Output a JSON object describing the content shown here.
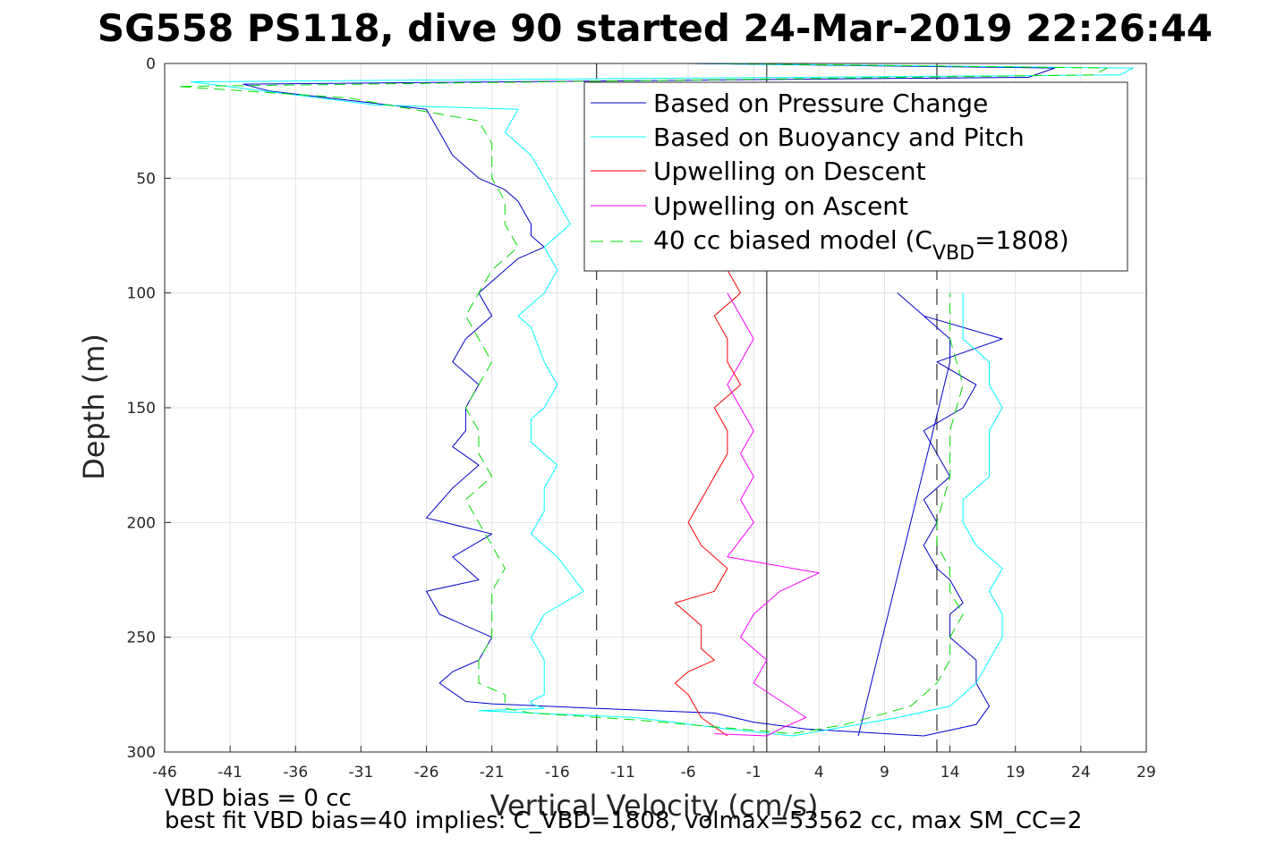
{
  "chart_data": {
    "type": "line",
    "title": "SG558 PS118, dive 90 started 24-Mar-2019 22:26:44",
    "xlabel": "Vertical Velocity (cm/s)",
    "ylabel": "Depth (m)",
    "xlim": [
      -46,
      29
    ],
    "ylim": [
      300,
      0
    ],
    "y_reversed": true,
    "grid": true,
    "x_ticks": [
      "-46",
      "-41",
      "-36",
      "-31",
      "-26",
      "-21",
      "-16",
      "-11",
      "-6",
      "-1",
      "4",
      "9",
      "14",
      "19",
      "24",
      "29"
    ],
    "y_ticks": [
      "0",
      "50",
      "100",
      "150",
      "200",
      "250",
      "300"
    ],
    "legend_position": "top-right",
    "reference_lines": [
      {
        "x": -13,
        "style": "dashed",
        "color": "#333333"
      },
      {
        "x": 0,
        "style": "solid",
        "color": "#333333"
      },
      {
        "x": 13,
        "style": "dashed",
        "color": "#333333"
      }
    ],
    "series": [
      {
        "name": "Based on Pressure Change",
        "color": "#0000cc",
        "dash": "none",
        "x": [
          -6,
          22,
          20,
          -40,
          -38,
          -26,
          -25,
          -24,
          -23,
          -22,
          -20,
          -19,
          -18,
          -18,
          -17,
          -19,
          -20,
          -21,
          -22,
          -21,
          -23,
          -24,
          -22,
          -23,
          -23,
          -24,
          -22,
          -24,
          -26,
          -21,
          -24,
          -22,
          -26,
          -25,
          -21,
          -22,
          -24,
          -25,
          -23,
          -21,
          -13,
          -4,
          -1,
          3,
          12,
          16,
          17,
          16,
          16,
          14,
          14,
          15,
          14,
          13,
          12,
          13,
          12,
          14,
          13,
          12,
          15,
          16,
          13,
          18,
          12,
          10,
          10,
          12,
          14,
          14,
          7
        ],
        "y": [
          0,
          2,
          6,
          9,
          12,
          20,
          30,
          40,
          45,
          50,
          55,
          60,
          70,
          75,
          80,
          85,
          90,
          95,
          100,
          110,
          120,
          130,
          140,
          150,
          160,
          167,
          175,
          185,
          198,
          205,
          215,
          225,
          230,
          240,
          250,
          260,
          265,
          270,
          278,
          279,
          281,
          283,
          287,
          290,
          293,
          288,
          280,
          270,
          260,
          250,
          240,
          235,
          225,
          220,
          210,
          200,
          190,
          180,
          170,
          160,
          150,
          140,
          130,
          120,
          110,
          100,
          100,
          110,
          120,
          130,
          293
        ]
      },
      {
        "name": "Based on Buoyancy and Pitch",
        "color": "#00ffff",
        "dash": "none",
        "x": [
          -6,
          28,
          27,
          -44,
          -30,
          -19,
          -20,
          -18,
          -17,
          -16,
          -15,
          -17,
          -16,
          -17,
          -19,
          -18,
          -17,
          -16,
          -17,
          -18,
          -18,
          -16,
          -17,
          -17,
          -18,
          -16,
          -14,
          -17,
          -18,
          -17,
          -17,
          -17,
          -18,
          -18,
          -17,
          -22,
          -10,
          -3,
          2,
          5,
          10,
          14,
          16,
          17,
          18,
          18,
          17,
          18,
          16,
          15,
          15,
          17,
          17,
          17,
          18,
          17,
          17,
          15,
          15,
          15
        ],
        "y": [
          0,
          2,
          5,
          8,
          18,
          20,
          30,
          40,
          50,
          60,
          70,
          80,
          90,
          100,
          110,
          115,
          130,
          140,
          150,
          155,
          165,
          175,
          185,
          195,
          205,
          215,
          230,
          240,
          250,
          260,
          270,
          275,
          278,
          279,
          281,
          282,
          285,
          290,
          293,
          290,
          285,
          280,
          270,
          260,
          250,
          240,
          230,
          220,
          210,
          200,
          190,
          180,
          170,
          160,
          150,
          140,
          130,
          120,
          110,
          100
        ]
      },
      {
        "name": "Upwelling on Descent",
        "color": "#ff0000",
        "dash": "none",
        "x": [
          -3,
          -2,
          -4,
          -3,
          -3,
          -2,
          -4,
          -3,
          -3,
          -4,
          -5,
          -6,
          -5,
          -3,
          -4,
          -7,
          -5,
          -5,
          -4,
          -6,
          -7,
          -6,
          -5,
          -3
        ],
        "y": [
          90,
          100,
          110,
          120,
          130,
          140,
          150,
          160,
          170,
          180,
          190,
          200,
          210,
          220,
          230,
          235,
          245,
          255,
          260,
          265,
          270,
          275,
          285,
          293
        ]
      },
      {
        "name": "Upwelling on Ascent",
        "color": "#ff00ff",
        "dash": "none",
        "x": [
          -3,
          -2,
          -1,
          -2,
          -3,
          -2,
          -1,
          -2,
          -1,
          -2,
          -1,
          -3,
          2,
          4,
          1,
          -1,
          -2,
          0,
          -1,
          3,
          1,
          0,
          -4
        ],
        "y": [
          100,
          110,
          120,
          130,
          140,
          150,
          160,
          170,
          180,
          190,
          200,
          215,
          220,
          222,
          230,
          240,
          250,
          260,
          270,
          285,
          290,
          293,
          292
        ]
      },
      {
        "name": "40 cc biased model (C_VBD=1808)",
        "color": "#00dd00",
        "dash": "dashed",
        "x": [
          -4,
          26,
          25,
          -45,
          -32,
          -22,
          -21,
          -21,
          -20,
          -20,
          -19,
          -21,
          -22,
          -23,
          -22,
          -21,
          -22,
          -23,
          -22,
          -22,
          -21,
          -23,
          -22,
          -21,
          -20,
          -21,
          -21,
          -21,
          -22,
          -22,
          -20,
          -20,
          -20,
          -18,
          -10,
          2,
          6,
          11,
          13,
          14,
          14,
          15,
          14,
          14,
          13,
          13,
          14,
          14,
          15,
          14,
          14
        ],
        "y": [
          0,
          2,
          5,
          10,
          15,
          25,
          35,
          50,
          60,
          70,
          80,
          90,
          100,
          110,
          120,
          130,
          140,
          150,
          160,
          170,
          180,
          190,
          200,
          210,
          220,
          230,
          240,
          250,
          260,
          270,
          275,
          279,
          281,
          283,
          286,
          292,
          288,
          280,
          270,
          260,
          250,
          240,
          230,
          220,
          210,
          200,
          180,
          160,
          140,
          120,
          100
        ]
      }
    ],
    "legend_entries": [
      {
        "label": "Based on Pressure Change",
        "color": "#0000cc",
        "dash": "none"
      },
      {
        "label": "Based on Buoyancy and Pitch",
        "color": "#00ffff",
        "dash": "none"
      },
      {
        "label": "Upwelling on Descent",
        "color": "#ff0000",
        "dash": "none"
      },
      {
        "label": "Upwelling on Ascent",
        "color": "#ff00ff",
        "dash": "none"
      },
      {
        "label_prefix": "40 cc biased model (C",
        "label_sub": "VBD",
        "label_suffix": "=1808)",
        "color": "#00dd00",
        "dash": "dashed"
      }
    ]
  },
  "notes": {
    "line1": "VBD bias = 0 cc",
    "line2": "best fit VBD bias=40 implies: C_VBD=1808, volmax=53562 cc, max SM_CC=2"
  }
}
